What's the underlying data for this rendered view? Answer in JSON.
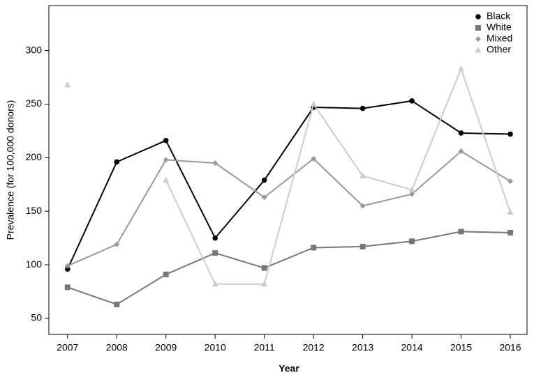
{
  "chart_data": {
    "type": "line",
    "x_label": "Year",
    "y_label": "Prevalence (for 100,000 donors)",
    "x": [
      2007,
      2008,
      2009,
      2010,
      2011,
      2012,
      2013,
      2014,
      2015,
      2016
    ],
    "series": [
      {
        "name": "Black",
        "color": "#000000",
        "marker": "circle",
        "values": [
          96,
          196,
          216,
          125,
          179,
          247,
          246,
          253,
          223,
          222
        ]
      },
      {
        "name": "White",
        "color": "#777777",
        "marker": "square",
        "values": [
          79,
          63,
          91,
          111,
          97,
          116,
          117,
          122,
          131,
          130
        ]
      },
      {
        "name": "Mixed",
        "color": "#999999",
        "marker": "diamond",
        "values": [
          99,
          119,
          198,
          195,
          163,
          199,
          155,
          166,
          206,
          178
        ]
      },
      {
        "name": "Other",
        "color": "#cccccc",
        "marker": "triangle",
        "values": [
          268,
          null,
          179,
          82,
          82,
          250,
          183,
          170,
          283,
          149
        ]
      }
    ],
    "xlim": [
      2006.62,
      2016.34
    ],
    "xticks": [
      2007,
      2008,
      2009,
      2010,
      2011,
      2012,
      2013,
      2014,
      2015,
      2016
    ],
    "ylim": [
      35,
      342
    ],
    "yticks": [
      50,
      100,
      150,
      200,
      250,
      300
    ],
    "grid": false,
    "legend": "top-right"
  }
}
